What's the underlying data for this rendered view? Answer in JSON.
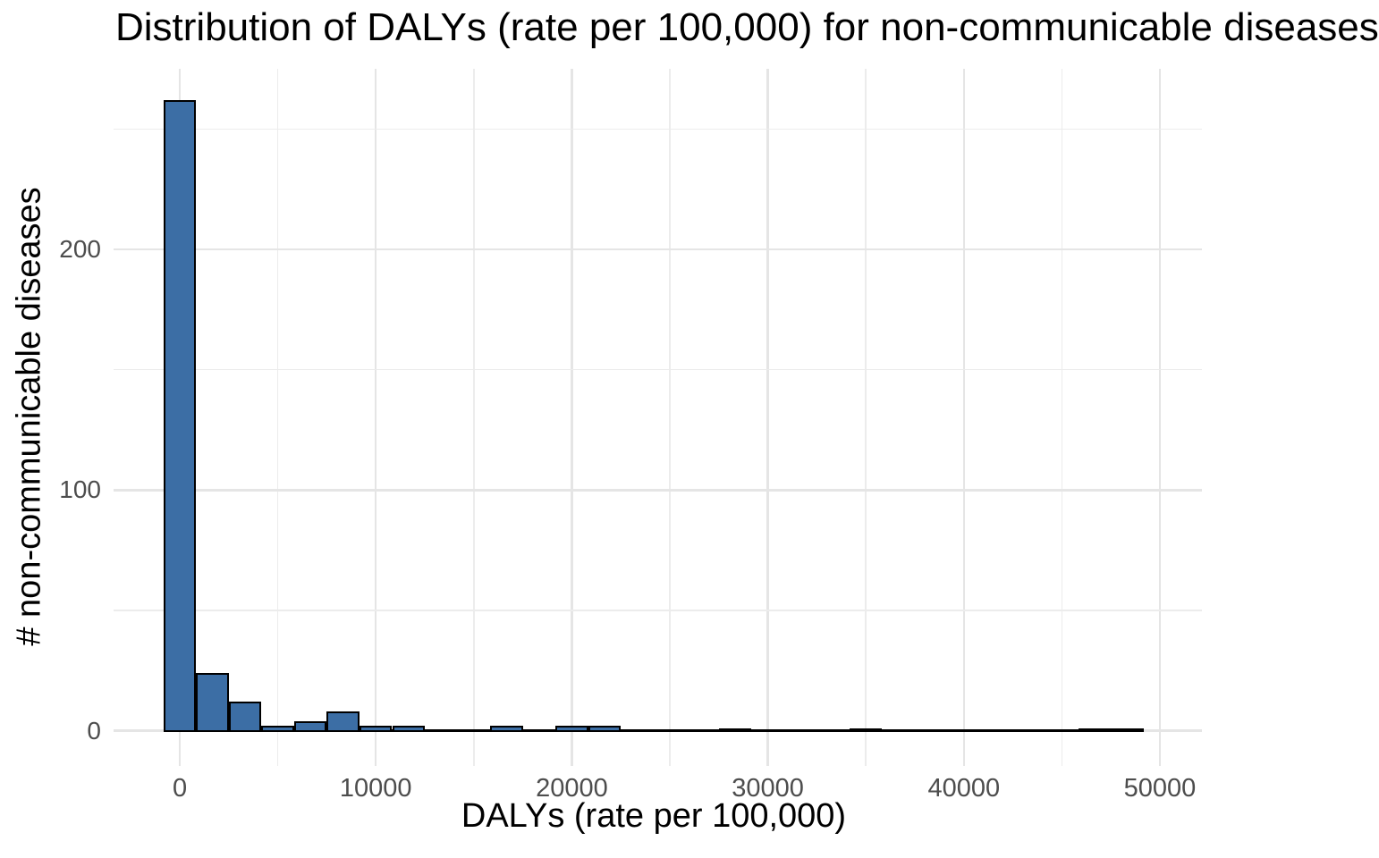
{
  "title": "Distribution of DALYs (rate per 100,000) for non-communicable diseases",
  "chart_data": {
    "type": "bar",
    "subtype": "histogram",
    "title": "Distribution of DALYs (rate per 100,000) for non-communicable diseases",
    "xlabel": "DALYs (rate per 100,000)",
    "ylabel": "# non-communicable diseases",
    "bin_start": -833.33,
    "bin_width": 1666.67,
    "counts": [
      262,
      24,
      12,
      2,
      4,
      8,
      2,
      2,
      0,
      0,
      2,
      0,
      2,
      2,
      0,
      0,
      0,
      1,
      0,
      0,
      0,
      1,
      0,
      0,
      0,
      0,
      0,
      0,
      1,
      1
    ],
    "x_ticks": [
      0,
      10000,
      20000,
      30000,
      40000,
      50000
    ],
    "x_tick_labels": [
      "0",
      "10000",
      "20000",
      "30000",
      "40000",
      "50000"
    ],
    "x_minor_ticks": [
      5000,
      15000,
      25000,
      35000,
      45000
    ],
    "y_ticks": [
      0,
      100,
      200
    ],
    "y_tick_labels": [
      "0",
      "100",
      "200"
    ],
    "y_minor_ticks": [
      50,
      150,
      250
    ],
    "xlim": [
      -3379,
      52146
    ],
    "ylim": [
      -14.6,
      275.0
    ],
    "grid": true,
    "legend": "none",
    "colors": {
      "bar_fill": "#3c6ea5",
      "bar_stroke": "#000000",
      "grid_major": "#e5e5e5",
      "grid_minor": "#ececec",
      "tick_label": "#4d4d4d",
      "text": "#000000",
      "background": "#ffffff"
    }
  }
}
